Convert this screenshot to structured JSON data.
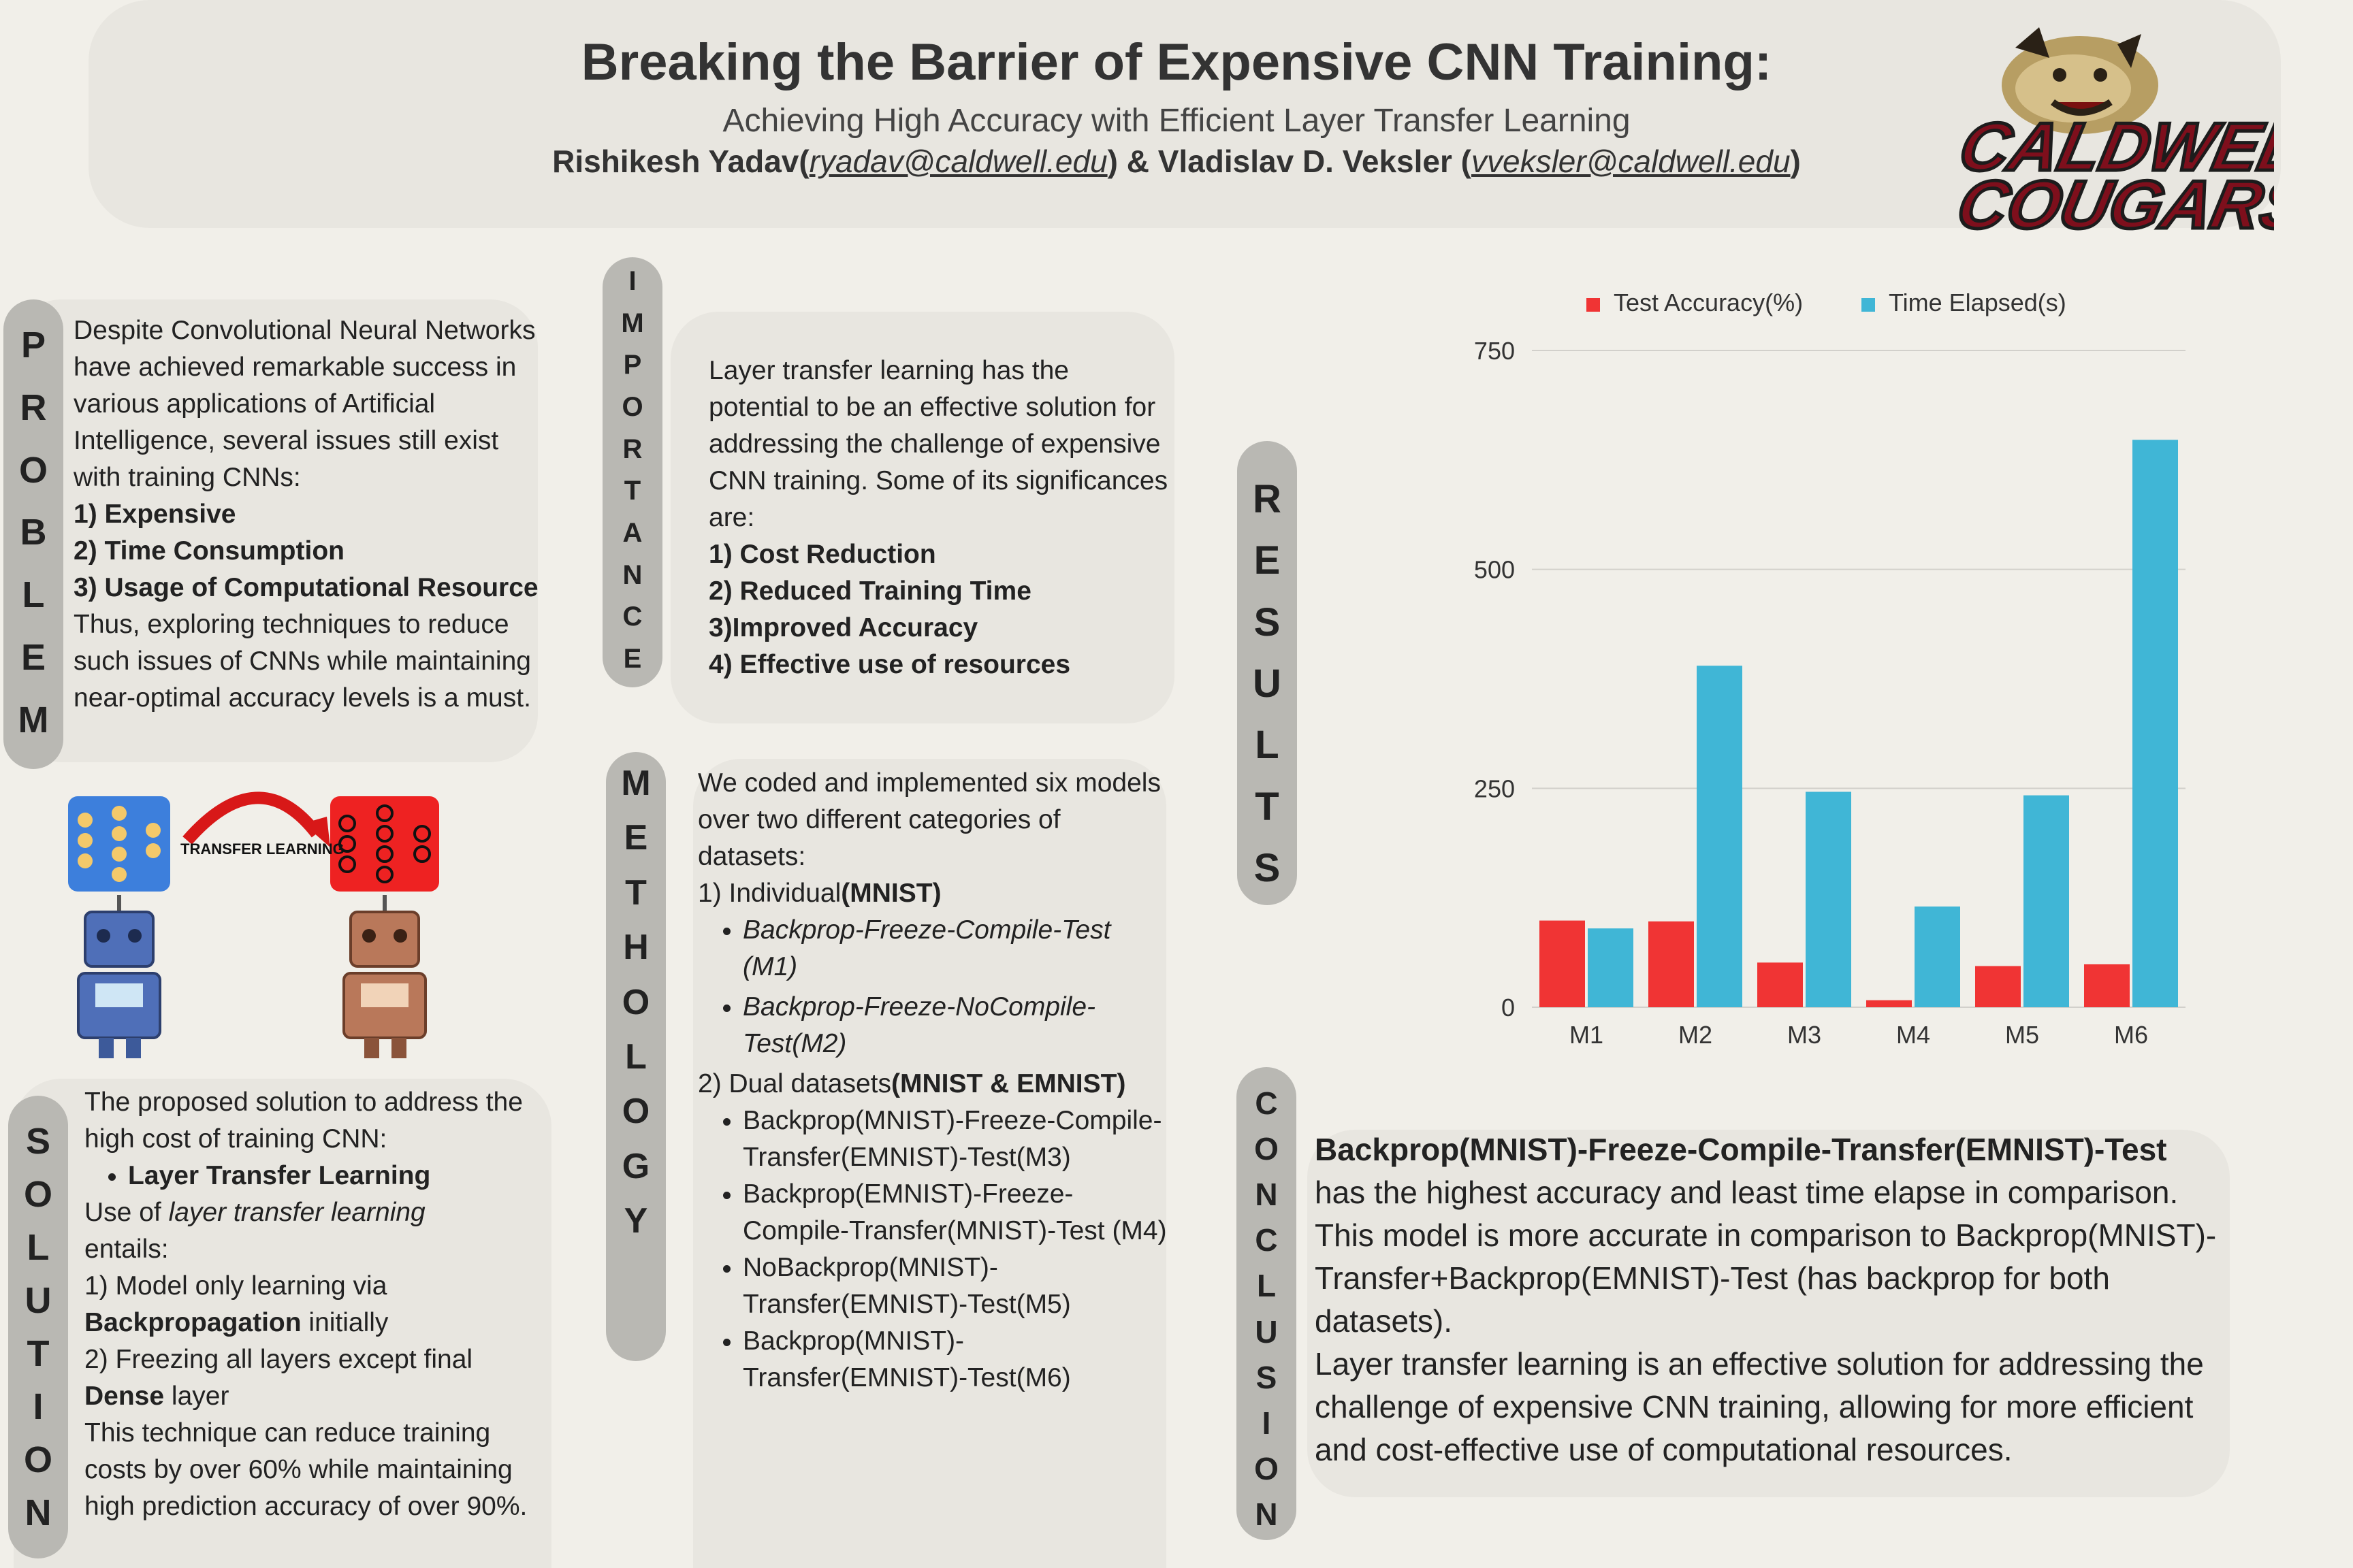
{
  "header": {
    "title": "Breaking the Barrier of Expensive CNN Training:",
    "subtitle": "Achieving High Accuracy with Efficient Layer Transfer Learning",
    "author1": "Rishikesh Yadav(",
    "email1": "ryadav@caldwell.edu",
    "and_text": ") & Vladislav D. Veksler (",
    "email2": "vveksler@caldwell.edu",
    "close": ")"
  },
  "logo": {
    "line1": "CALDWELL",
    "line2": "COUGARS"
  },
  "problem": {
    "label": "PROBLEM",
    "intro": "Despite Convolutional Neural Networks have achieved remarkable success in various applications of Artificial Intelligence, several issues still exist with training CNNs:",
    "issue1": "1) Expensive",
    "issue2": "2) Time Consumption",
    "issue3": "3) Usage of Computational Resource",
    "outro": "Thus, exploring techniques to reduce such issues of CNNs while maintaining near-optimal accuracy levels is a must."
  },
  "illustration": {
    "arrow_label": "TRANSFER LEARNING"
  },
  "solution": {
    "label": "SOLUTION",
    "intro": "The proposed solution to address the high cost of training CNN:",
    "bullet": "Layer Transfer Learning",
    "use_prefix": "Use of ",
    "use_em": "layer transfer learning",
    "entails": "entails:",
    "step1_a": "1) Model only learning via",
    "step1_b": "Backpropagation",
    "step1_c": " initially",
    "step2_a": "2) Freezing all layers except final",
    "step2_b": "Dense",
    "step2_c": " layer",
    "outro": "This technique can reduce training costs by over 60% while maintaining high prediction accuracy of over 90%."
  },
  "importance": {
    "label": "IMPORTANCE",
    "intro": "Layer transfer learning has the potential to be an effective solution for addressing the challenge of expensive CNN training. Some of its significances are:",
    "item1": "1) Cost Reduction",
    "item2": "2) Reduced Training Time",
    "item3": "3)Improved Accuracy",
    "item4": "4) Effective use of resources"
  },
  "methodology": {
    "label": "METHOLOGY",
    "intro": "We coded and implemented six models over two different categories of datasets:",
    "cat1_a": "1) Individual",
    "cat1_b": "(MNIST)",
    "cat1_items": [
      "Backprop-Freeze-Compile-Test (M1)",
      "Backprop-Freeze-NoCompile-Test(M2)"
    ],
    "cat2_a": "2) Dual datasets",
    "cat2_b": "(MNIST & EMNIST)",
    "cat2_items": [
      "Backprop(MNIST)-Freeze-Compile-Transfer(EMNIST)-Test(M3)",
      "Backprop(EMNIST)-Freeze-Compile-Transfer(MNIST)-Test (M4)",
      "NoBackprop(MNIST)-Transfer(EMNIST)-Test(M5)",
      "Backprop(MNIST)-Transfer(EMNIST)-Test(M6)"
    ]
  },
  "results": {
    "label": "RESULTS"
  },
  "conclusion": {
    "label": "CONCLUSION",
    "model": "Backprop(MNIST)-Freeze-Compile-Transfer(EMNIST)-Test",
    "p1": "has the highest accuracy and least time elapse in comparison. This model is more accurate in comparison to Backprop(MNIST)-Transfer+Backprop(EMNIST)-Test (has backprop for both datasets).",
    "p2": "Layer transfer learning is an effective solution for addressing the challenge of expensive CNN training, allowing for more efficient and cost-effective use of computational resources."
  },
  "colors": {
    "accuracy": "#f03434",
    "time": "#40b6d6",
    "pill": "#b9b8b3",
    "box": "#e8e6e0"
  },
  "chart_data": {
    "type": "bar",
    "categories": [
      "M1",
      "M2",
      "M3",
      "M4",
      "M5",
      "M6"
    ],
    "series": [
      {
        "name": "Test Accuracy(%)",
        "values": [
          99,
          98,
          51,
          8,
          47,
          49
        ]
      },
      {
        "name": "Time Elapsed(s)",
        "values": [
          90,
          390,
          246,
          115,
          242,
          648
        ]
      }
    ],
    "yticks": [
      0,
      250,
      500,
      750
    ],
    "ylim": [
      0,
      750
    ],
    "grid": true,
    "legend": "top"
  }
}
